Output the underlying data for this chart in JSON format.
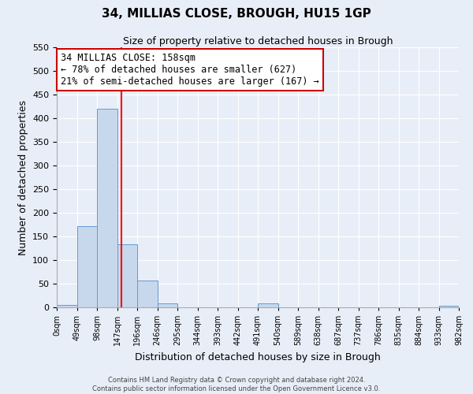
{
  "title": "34, MILLIAS CLOSE, BROUGH, HU15 1GP",
  "subtitle": "Size of property relative to detached houses in Brough",
  "xlabel": "Distribution of detached houses by size in Brough",
  "ylabel": "Number of detached properties",
  "bin_edges": [
    0,
    49,
    98,
    147,
    196,
    245,
    294,
    343,
    392,
    441,
    490,
    539,
    588,
    637,
    686,
    735,
    784,
    833,
    882,
    931,
    980
  ],
  "bin_labels": [
    "0sqm",
    "49sqm",
    "98sqm",
    "147sqm",
    "196sqm",
    "246sqm",
    "295sqm",
    "344sqm",
    "393sqm",
    "442sqm",
    "491sqm",
    "540sqm",
    "589sqm",
    "638sqm",
    "687sqm",
    "737sqm",
    "786sqm",
    "835sqm",
    "884sqm",
    "933sqm",
    "982sqm"
  ],
  "counts": [
    5,
    172,
    420,
    133,
    57,
    8,
    0,
    0,
    0,
    0,
    8,
    0,
    0,
    0,
    0,
    0,
    0,
    0,
    0,
    4
  ],
  "bar_color": "#c8d8ec",
  "bar_edge_color": "#6699cc",
  "red_line_x": 158,
  "annotation_title": "34 MILLIAS CLOSE: 158sqm",
  "annotation_line1": "← 78% of detached houses are smaller (627)",
  "annotation_line2": "21% of semi-detached houses are larger (167) →",
  "annotation_box_color": "#ffffff",
  "annotation_box_edge_color": "#cc0000",
  "ylim": [
    0,
    550
  ],
  "yticks": [
    0,
    50,
    100,
    150,
    200,
    250,
    300,
    350,
    400,
    450,
    500,
    550
  ],
  "footer1": "Contains HM Land Registry data © Crown copyright and database right 2024.",
  "footer2": "Contains public sector information licensed under the Open Government Licence v3.0.",
  "background_color": "#e8eef8",
  "grid_color": "#ffffff"
}
